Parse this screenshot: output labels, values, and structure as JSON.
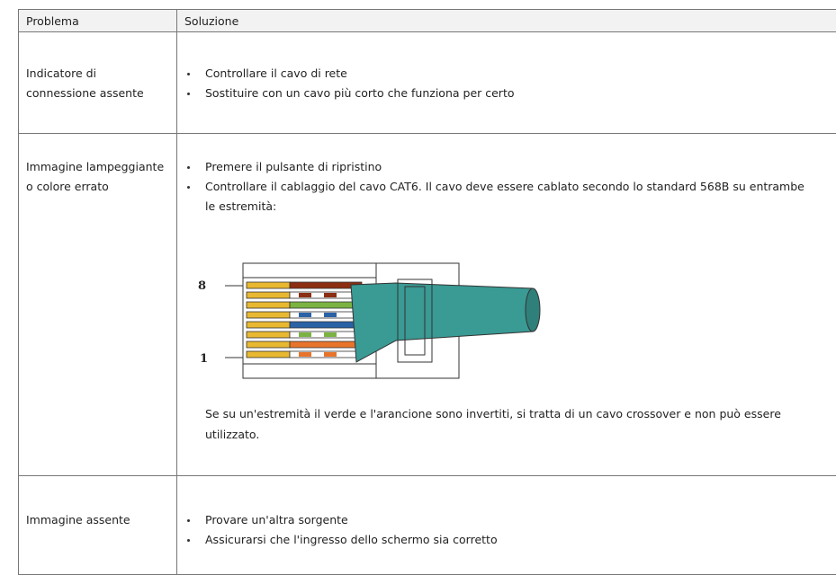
{
  "table": {
    "header": [
      "Problema",
      "Soluzione"
    ],
    "rows": [
      {
        "problem": "Indicatore di connessione assente",
        "bullets": [
          "Controllare il cavo di rete",
          "Sostituire con un cavo più corto che funziona per certo"
        ]
      },
      {
        "problem": "Immagine lampeggiante o colore errato",
        "bullets": [
          "Premere il pulsante di ripristino",
          "Controllare il cablaggio del cavo CAT6. Il cavo deve essere cablato secondo lo standard 568B su entrambe le estremità:"
        ],
        "diagram_labels": [
          "8",
          "1"
        ],
        "note": "Se su un'estremità il verde e l'arancione sono invertiti, si tratta di un cavo crossover e non può essere utilizzato."
      },
      {
        "problem": "Immagine assente",
        "bullets": [
          "Provare un'altra sorgente",
          "Assicurarsi che l'ingresso dello schermo sia corretto"
        ]
      }
    ]
  }
}
